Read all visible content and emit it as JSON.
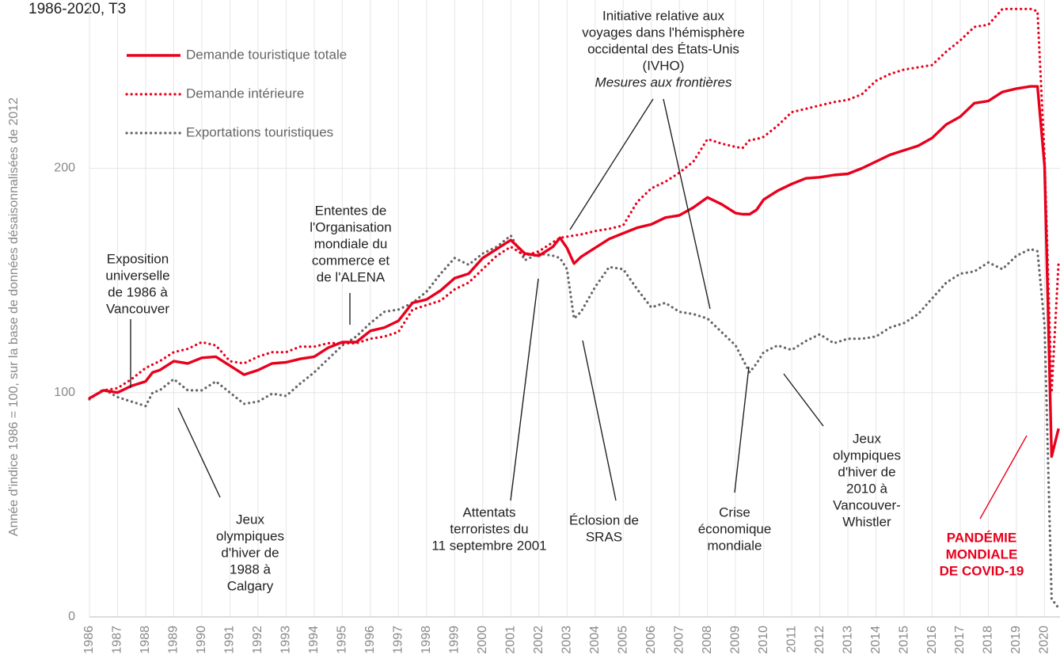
{
  "chart_data": {
    "type": "line",
    "title": "1986-2020, T3",
    "y_label": "Année d'indice 1986 = 100, sur la base de données désaisonnalisées de 2012",
    "x": [
      1986,
      1986.5,
      1987,
      1987.5,
      1988,
      1988.25,
      1988.5,
      1989,
      1989.5,
      1990,
      1990.5,
      1991,
      1991.5,
      1992,
      1992.5,
      1993,
      1993.5,
      1994,
      1994.5,
      1995,
      1995.5,
      1996,
      1996.5,
      1997,
      1997.5,
      1998,
      1998.5,
      1999,
      1999.5,
      2000,
      2000.5,
      2001,
      2001.5,
      2002,
      2002.5,
      2002.75,
      2003,
      2003.25,
      2003.5,
      2004,
      2004.5,
      2005,
      2005.5,
      2006,
      2006.5,
      2007,
      2007.5,
      2008,
      2008.5,
      2009,
      2009.25,
      2009.5,
      2009.75,
      2010,
      2010.5,
      2011,
      2011.5,
      2012,
      2012.5,
      2013,
      2013.5,
      2014,
      2014.5,
      2015,
      2015.5,
      2016,
      2016.5,
      2017,
      2017.5,
      2018,
      2018.5,
      2019,
      2019.5,
      2019.75,
      2020,
      2020.25,
      2020.5
    ],
    "series": [
      {
        "name": "Demande touristique totale",
        "color": "#e8001c",
        "style": "solid",
        "values": [
          97.5,
          101,
          100,
          103,
          105,
          109,
          110,
          114,
          113,
          115.5,
          116,
          112,
          108,
          110,
          113,
          113.5,
          115,
          116,
          120,
          122.5,
          122.5,
          127.5,
          129,
          132,
          140,
          141.5,
          145.5,
          151,
          153,
          160,
          164,
          168,
          162,
          161,
          165,
          169,
          164.5,
          157.5,
          160.5,
          164.5,
          168.5,
          171,
          173.5,
          175,
          178,
          179,
          182.5,
          187,
          184,
          180,
          179.5,
          179.5,
          181.5,
          186,
          190,
          193,
          195.5,
          196,
          197,
          197.5,
          200,
          203,
          206,
          208,
          210,
          213.5,
          219.5,
          223,
          229,
          230,
          234,
          235.5,
          236.5,
          236.5,
          201,
          71.5,
          84
        ]
      },
      {
        "name": "Demande intérieure",
        "color": "#e8001c",
        "style": "dotted",
        "values": [
          97.5,
          101,
          102,
          106,
          111,
          112.5,
          114,
          118,
          119.5,
          122.5,
          121,
          114,
          113,
          116,
          118,
          118,
          120.5,
          120.5,
          122,
          122,
          122,
          124,
          125,
          127,
          137,
          139,
          141,
          146,
          149,
          155,
          161,
          165,
          161,
          163,
          167,
          169,
          169.5,
          170,
          170.5,
          172,
          173,
          174.5,
          185,
          191,
          194,
          198,
          203,
          213,
          211,
          209.5,
          209,
          212.5,
          213,
          214,
          219,
          225,
          226.5,
          228,
          229.5,
          230.5,
          233,
          239,
          242,
          244,
          245,
          246,
          252,
          257,
          263,
          264,
          271,
          271,
          271,
          270,
          205,
          100,
          158
        ]
      },
      {
        "name": "Exportations touristiques",
        "color": "#666666",
        "style": "dotted",
        "values": [
          97,
          101.5,
          98,
          96,
          94,
          100,
          101,
          106,
          101,
          101,
          105,
          100,
          95,
          96,
          99.5,
          98.5,
          104,
          109,
          115,
          121,
          125,
          131,
          136,
          137,
          140,
          145,
          153,
          160,
          157,
          162,
          165,
          170,
          159,
          162,
          161,
          160,
          155,
          133,
          136,
          147,
          156,
          155,
          146,
          138,
          140,
          136,
          135,
          133,
          127,
          121,
          115,
          109,
          113,
          118,
          121,
          119,
          123,
          126,
          122,
          124,
          124,
          125,
          129,
          131,
          135,
          142,
          149,
          153,
          154,
          158,
          155,
          161,
          164,
          163,
          130,
          8,
          4
        ]
      }
    ],
    "xlim": [
      1986,
      2020.55
    ],
    "xticks": [
      1986,
      1987,
      1988,
      1989,
      1990,
      1991,
      1992,
      1993,
      1994,
      1995,
      1996,
      1997,
      1998,
      1999,
      2000,
      2001,
      2002,
      2003,
      2004,
      2005,
      2006,
      2007,
      2008,
      2009,
      2010,
      2011,
      2012,
      2013,
      2014,
      2015,
      2016,
      2017,
      2018,
      2019,
      2020
    ],
    "ylim": [
      0,
      275
    ],
    "yticks": [
      0,
      100,
      200
    ],
    "grid": true,
    "legend": "upper left",
    "annotations": [
      {
        "lines": [
          "Exposition",
          "universelle",
          "de 1986 à",
          "Vancouver"
        ]
      },
      {
        "lines": [
          "Jeux",
          "olympiques",
          "d'hiver de",
          "1988 à",
          "Calgary"
        ]
      },
      {
        "lines": [
          "Ententes de",
          "l'Organisation",
          "mondiale du",
          "commerce et",
          "de l'ALENA"
        ]
      },
      {
        "lines": [
          "Initiative relative aux",
          "voyages dans l'hémisphère",
          "occidental des États-Unis",
          "(IVHO)",
          "Mesures aux frontières"
        ]
      },
      {
        "lines": [
          "Attentats",
          "terroristes du",
          "11 septembre 2001"
        ]
      },
      {
        "lines": [
          "Éclosion de",
          "SRAS"
        ]
      },
      {
        "lines": [
          "Crise",
          "économique",
          "mondiale"
        ]
      },
      {
        "lines": [
          "Jeux",
          "olympiques",
          "d'hiver de",
          "2010 à",
          "Vancouver-",
          "Whistler"
        ]
      },
      {
        "lines": [
          "PANDÉMIE",
          "MONDIALE",
          "DE COVID-19"
        ]
      }
    ]
  }
}
